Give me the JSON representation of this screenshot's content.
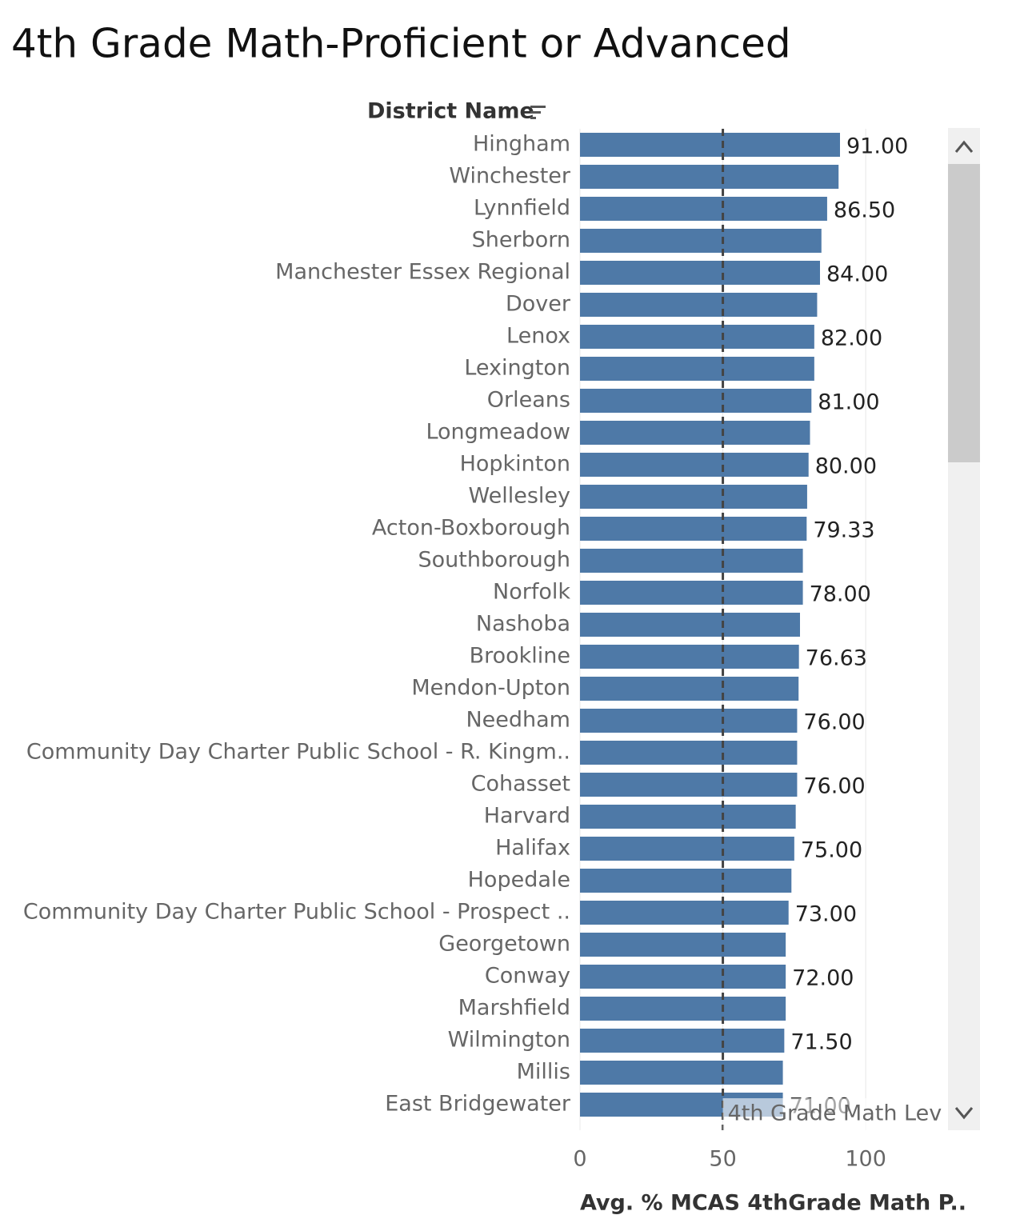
{
  "chart_data": {
    "type": "bar",
    "orientation": "horizontal",
    "title": "4th Grade Math-Proficient or Advanced",
    "category_header": "District Name",
    "x_label": "Avg. % MCAS 4thGrade Math P..",
    "categories": [
      "Hingham",
      "Winchester",
      "Lynnfield",
      "Sherborn",
      "Manchester Essex Regional",
      "Dover",
      "Lenox",
      "Lexington",
      "Orleans",
      "Longmeadow",
      "Hopkinton",
      "Wellesley",
      "Acton-Boxborough",
      "Southborough",
      "Norfolk",
      "Nashoba",
      "Brookline",
      "Mendon-Upton",
      "Needham",
      "Community Day Charter Public School - R. Kingm..",
      "Cohasset",
      "Harvard",
      "Halifax",
      "Hopedale",
      "Community Day Charter Public School - Prospect ..",
      "Georgetown",
      "Conway",
      "Marshfield",
      "Wilmington",
      "Millis",
      "East Bridgewater"
    ],
    "values": [
      91,
      90.5,
      86.5,
      84.5,
      84,
      83,
      82,
      82,
      81,
      80.5,
      80,
      79.5,
      79.33,
      78,
      78,
      77,
      76.63,
      76.5,
      76,
      76,
      76,
      75.5,
      75,
      74,
      73,
      72,
      72,
      72,
      71.5,
      71,
      71
    ],
    "value_labels": [
      "91.00",
      null,
      "86.50",
      null,
      "84.00",
      null,
      "82.00",
      null,
      "81.00",
      null,
      "80.00",
      null,
      "79.33",
      null,
      "78.00",
      null,
      "76.63",
      null,
      "76.00",
      null,
      "76.00",
      null,
      "75.00",
      null,
      "73.00",
      null,
      "72.00",
      null,
      "71.50",
      null,
      "71.00"
    ],
    "color": "#4e79a7",
    "xlim": [
      0,
      126
    ],
    "xticks": [
      0,
      50,
      100
    ],
    "grid": true,
    "reference_line": {
      "value": 50,
      "label": "4th Grade Math Lev"
    }
  }
}
